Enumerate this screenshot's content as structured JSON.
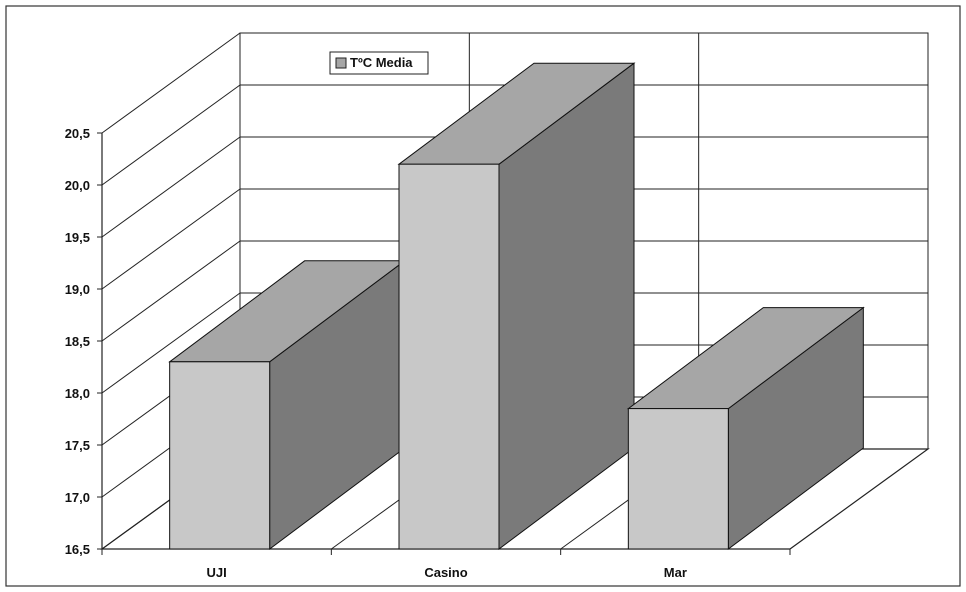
{
  "chart_data": {
    "type": "bar",
    "categories": [
      "UJI",
      "Casino",
      "Mar"
    ],
    "series": [
      {
        "name": "TºC Media",
        "values": [
          18.3,
          20.2,
          17.85
        ]
      }
    ],
    "ylim": [
      16.5,
      20.5
    ],
    "yticks": [
      "20,5",
      "20,0",
      "19,5",
      "19,0",
      "18,5",
      "18,0",
      "17,5",
      "17,0",
      "16,5"
    ],
    "legend_position": "top-center",
    "grid": true,
    "three_d": true,
    "colors": {
      "front": "#c8c8c8",
      "top": "#a6a6a6",
      "side": "#7a7a7a",
      "legend_swatch": "#a6a6a6"
    }
  }
}
